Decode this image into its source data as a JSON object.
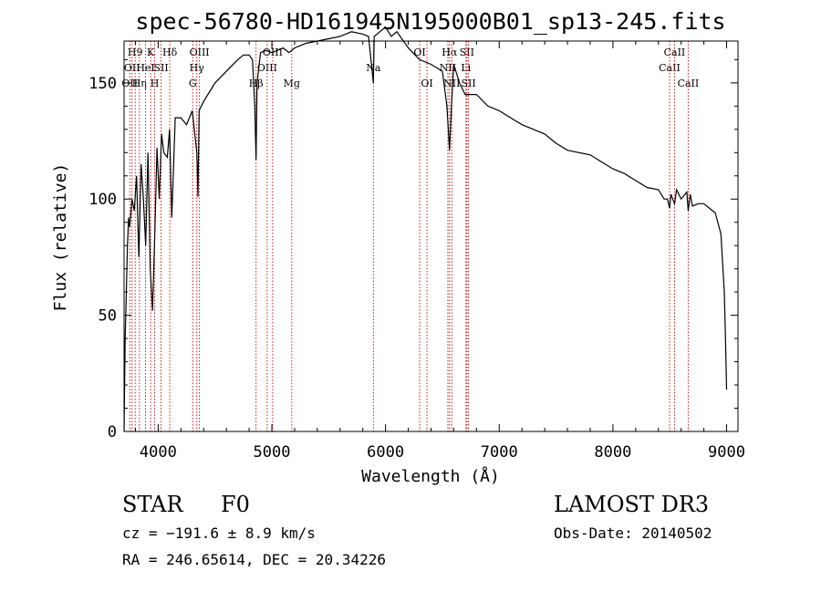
{
  "chart_data": {
    "type": "line",
    "title": "spec-56780-HD161945N195000B01_sp13-245.fits",
    "xlabel": "Wavelength (Å)",
    "ylabel": "Flux (relative)",
    "xlim": [
      3700,
      9100
    ],
    "ylim": [
      0,
      168
    ],
    "xticks": [
      4000,
      5000,
      6000,
      7000,
      8000,
      9000
    ],
    "yticks": [
      0,
      50,
      100,
      150
    ],
    "grid": false,
    "series": [
      {
        "name": "spectrum",
        "x": [
          3700,
          3710,
          3720,
          3730,
          3740,
          3750,
          3770,
          3790,
          3810,
          3830,
          3850,
          3870,
          3890,
          3910,
          3930,
          3950,
          3970,
          3990,
          4010,
          4030,
          4050,
          4080,
          4100,
          4120,
          4150,
          4200,
          4250,
          4300,
          4340,
          4350,
          4360,
          4400,
          4450,
          4500,
          4600,
          4700,
          4750,
          4800,
          4830,
          4850,
          4861,
          4870,
          4900,
          4950,
          5000,
          5050,
          5100,
          5150,
          5200,
          5250,
          5300,
          5400,
          5500,
          5600,
          5700,
          5800,
          5850,
          5893,
          5900,
          5950,
          6000,
          6050,
          6100,
          6200,
          6300,
          6400,
          6500,
          6540,
          6563,
          6580,
          6600,
          6650,
          6700,
          6800,
          6900,
          7000,
          7100,
          7200,
          7300,
          7400,
          7500,
          7600,
          7700,
          7800,
          7900,
          8000,
          8100,
          8200,
          8300,
          8400,
          8450,
          8480,
          8498,
          8510,
          8542,
          8560,
          8600,
          8650,
          8662,
          8680,
          8700,
          8750,
          8800,
          8850,
          8900,
          8950,
          8980,
          8990,
          9000
        ],
        "y": [
          0,
          40,
          60,
          80,
          92,
          88,
          100,
          95,
          110,
          75,
          115,
          100,
          80,
          120,
          70,
          52,
          85,
          122,
          100,
          128,
          120,
          118,
          130,
          92,
          135,
          135,
          132,
          138,
          120,
          101,
          138,
          142,
          146,
          150,
          155,
          160,
          162,
          162,
          160,
          140,
          117,
          150,
          163,
          164,
          163,
          164,
          165,
          163,
          165,
          166,
          167,
          168,
          169,
          170,
          172,
          171,
          170,
          150,
          170,
          172,
          174,
          170,
          172,
          165,
          160,
          158,
          155,
          140,
          121,
          140,
          158,
          150,
          145,
          145,
          140,
          138,
          135,
          132,
          130,
          128,
          124,
          121,
          120,
          119,
          116,
          113,
          111,
          108,
          105,
          104,
          100,
          100,
          96,
          102,
          98,
          104,
          100,
          103,
          95,
          102,
          97,
          98,
          98,
          96,
          94,
          85,
          60,
          40,
          18
        ]
      }
    ],
    "lines": [
      {
        "wl": 3750,
        "label": "OII",
        "row": 2
      },
      {
        "wl": 3770,
        "label": "OII",
        "row": 1
      },
      {
        "wl": 3798,
        "label": "H9",
        "row": 0
      },
      {
        "wl": 3835,
        "label": "Hη",
        "row": 2
      },
      {
        "wl": 3889,
        "label": "HeI",
        "row": 1
      },
      {
        "wl": 3934,
        "label": "K",
        "row": 0
      },
      {
        "wl": 3969,
        "label": "H",
        "row": 2
      },
      {
        "wl": 4026,
        "label": "SII",
        "row": 1
      },
      {
        "wl": 4102,
        "label": "Hδ",
        "row": 0
      },
      {
        "wl": 4304,
        "label": "G",
        "row": 2
      },
      {
        "wl": 4340,
        "label": "Hγ",
        "row": 1
      },
      {
        "wl": 4363,
        "label": "OIII",
        "row": 0
      },
      {
        "wl": 4861,
        "label": "Hβ",
        "row": 2
      },
      {
        "wl": 4959,
        "label": "OIII",
        "row": 1
      },
      {
        "wl": 5007,
        "label": "OIII",
        "row": 0
      },
      {
        "wl": 5175,
        "label": "Mg",
        "row": 2
      },
      {
        "wl": 5893,
        "label": "Na",
        "row": 1
      },
      {
        "wl": 6300,
        "label": "OI",
        "row": 0
      },
      {
        "wl": 6364,
        "label": "OI",
        "row": 2
      },
      {
        "wl": 6548,
        "label": "NII",
        "row": 1
      },
      {
        "wl": 6563,
        "label": "Hα",
        "row": 0
      },
      {
        "wl": 6583,
        "label": "NII",
        "row": 2
      },
      {
        "wl": 6707,
        "label": "Li",
        "row": 1
      },
      {
        "wl": 6716,
        "label": "SII",
        "row": 0
      },
      {
        "wl": 6730,
        "label": "SII",
        "row": 2
      },
      {
        "wl": 8498,
        "label": "CaII",
        "row": 1
      },
      {
        "wl": 8542,
        "label": "CaII",
        "row": 0
      },
      {
        "wl": 8662,
        "label": "CaII",
        "row": 2
      }
    ]
  },
  "info": {
    "class_label": "STAR",
    "subclass": "F0",
    "survey": "LAMOST DR3",
    "redshift_line": "cz = −191.6 ± 8.9 km/s",
    "obs_date": "Obs-Date: 20140502",
    "coords": "RA = 246.65614, DEC =  20.34226"
  },
  "colors": {
    "axes": "#000000",
    "spectrum": "#000000",
    "line_markers": "#cc0000"
  }
}
